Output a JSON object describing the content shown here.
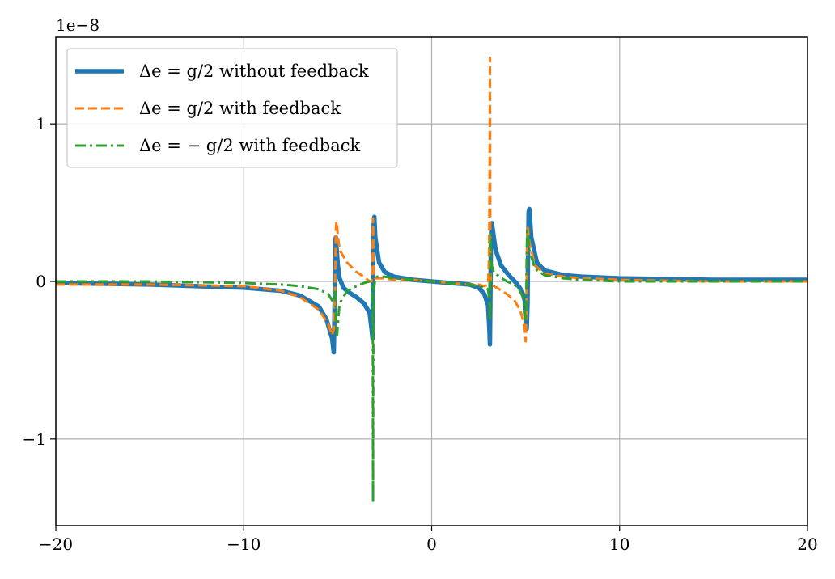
{
  "chart_data": {
    "type": "line",
    "title": "",
    "xlabel": "",
    "ylabel": "",
    "offset_text": "1e−8",
    "xlim": [
      -20,
      20
    ],
    "ylim": [
      -1.55,
      1.55
    ],
    "grid": true,
    "legend_position": "top-left",
    "x_ticks": [
      -20,
      -10,
      0,
      10,
      20
    ],
    "x_tick_labels": [
      "−20",
      "−10",
      "0",
      "10",
      "20"
    ],
    "y_ticks": [
      -1,
      0,
      1
    ],
    "y_tick_labels": [
      "−1",
      "0",
      "1"
    ],
    "series": [
      {
        "name": "Δe = g/2 without feedback",
        "color": "#1f77b4",
        "style": "solid",
        "x": [
          -20,
          -15,
          -10,
          -8,
          -7,
          -6,
          -5.6,
          -5.3,
          -5.21,
          -5.17,
          -5.14,
          -5.12,
          -5.1,
          -5.05,
          -5,
          -4.9,
          -4.7,
          -4.4,
          -4,
          -3.6,
          -3.3,
          -3.18,
          -3.15,
          -3.13,
          -3.1,
          -3.07,
          -3.05,
          -3,
          -2.8,
          -2.5,
          -2,
          -1,
          0,
          1,
          2,
          2.5,
          2.8,
          3,
          3.07,
          3.1,
          3.13,
          3.15,
          3.18,
          3.2,
          3.25,
          3.4,
          3.7,
          4.1,
          4.5,
          4.8,
          4.95,
          5.03,
          5.06,
          5.1,
          5.13,
          5.16,
          5.2,
          5.3,
          5.6,
          6,
          7,
          8,
          10,
          15,
          20
        ],
        "y": [
          -0.01,
          -0.02,
          -0.04,
          -0.06,
          -0.09,
          -0.16,
          -0.24,
          -0.36,
          -0.45,
          -0.2,
          0.1,
          0.24,
          0.28,
          0.2,
          0.11,
          0.02,
          -0.04,
          -0.07,
          -0.1,
          -0.14,
          -0.2,
          -0.32,
          -0.36,
          -0.05,
          0.3,
          0.4,
          0.41,
          0.28,
          0.12,
          0.06,
          0.03,
          0.01,
          0.0,
          -0.01,
          -0.02,
          -0.04,
          -0.08,
          -0.15,
          -0.3,
          -0.4,
          -0.05,
          0.25,
          0.36,
          0.37,
          0.33,
          0.2,
          0.1,
          0.04,
          -0.01,
          -0.06,
          -0.12,
          -0.2,
          -0.3,
          -0.15,
          0.2,
          0.44,
          0.46,
          0.28,
          0.12,
          0.07,
          0.04,
          0.03,
          0.02,
          0.01,
          0.01
        ]
      },
      {
        "name": "Δe = g/2 with feedback",
        "color": "#ff7f0e",
        "style": "dashed",
        "x": [
          -20,
          -15,
          -10,
          -8,
          -7,
          -6,
          -5.5,
          -5.3,
          -5.2,
          -5.15,
          -5.12,
          -5.1,
          -5.07,
          -5.03,
          -5,
          -4.9,
          -4.5,
          -4,
          -3.6,
          -3.3,
          -3.2,
          -3.15,
          -3.13,
          -3.12,
          -3.11,
          -3.1,
          -3.08,
          -3.05,
          -3.02,
          -3,
          -2.9,
          -2.5,
          -2,
          -1,
          0,
          1,
          2,
          2.5,
          2.8,
          3,
          3.05,
          3.08,
          3.1,
          3.11,
          3.12,
          3.13,
          3.15,
          3.2,
          3.3,
          3.6,
          4,
          4.4,
          4.7,
          4.85,
          4.95,
          5,
          5.03,
          5.05,
          5.08,
          5.12,
          5.2,
          5.5,
          6,
          7,
          8,
          10,
          15,
          20
        ],
        "y": [
          -0.02,
          -0.02,
          -0.03,
          -0.06,
          -0.1,
          -0.18,
          -0.27,
          -0.34,
          -0.3,
          -0.1,
          0.15,
          0.32,
          0.38,
          0.35,
          0.3,
          0.2,
          0.12,
          0.06,
          0.03,
          0.0,
          0.0,
          0.05,
          0.25,
          0.4,
          0.35,
          0.15,
          0.06,
          0.03,
          0.02,
          0.02,
          0.02,
          0.02,
          0.01,
          0.01,
          0.0,
          -0.01,
          -0.02,
          -0.02,
          -0.03,
          -0.02,
          0.15,
          0.6,
          1.42,
          0.8,
          0.3,
          0.1,
          0.0,
          -0.01,
          -0.03,
          -0.05,
          -0.08,
          -0.12,
          -0.18,
          -0.24,
          -0.3,
          -0.38,
          -0.28,
          -0.1,
          0.25,
          0.34,
          0.25,
          0.1,
          0.05,
          0.03,
          0.02,
          0.01,
          0.0,
          0.0
        ]
      },
      {
        "name": "Δe = − g/2 with feedback",
        "color": "#2ca02c",
        "style": "dashdot",
        "x": [
          -20,
          -15,
          -10,
          -8,
          -7,
          -6,
          -5.5,
          -5.3,
          -5.2,
          -5.15,
          -5.12,
          -5.1,
          -5.07,
          -5.03,
          -5,
          -4.9,
          -4.5,
          -4,
          -3.6,
          -3.3,
          -3.2,
          -3.15,
          -3.13,
          -3.12,
          -3.11,
          -3.1,
          -3.08,
          -3.05,
          -3.02,
          -3,
          -2.9,
          -2.5,
          -2,
          -1,
          0,
          1,
          2,
          2.5,
          2.8,
          3,
          3.05,
          3.08,
          3.1,
          3.11,
          3.12,
          3.13,
          3.15,
          3.2,
          3.3,
          3.6,
          4,
          4.4,
          4.7,
          4.85,
          4.95,
          5,
          5.03,
          5.05,
          5.08,
          5.12,
          5.2,
          5.5,
          6,
          7,
          8,
          10,
          15,
          20
        ],
        "y": [
          0.0,
          0.0,
          -0.01,
          -0.02,
          -0.03,
          -0.05,
          -0.08,
          -0.12,
          -0.1,
          -0.05,
          -0.1,
          -0.25,
          -0.32,
          -0.34,
          -0.28,
          -0.14,
          -0.06,
          -0.03,
          -0.01,
          0.0,
          -0.02,
          -0.1,
          -0.4,
          -1.4,
          -0.7,
          -0.25,
          -0.08,
          -0.03,
          0.0,
          0.02,
          0.03,
          0.03,
          0.02,
          0.01,
          0.0,
          -0.01,
          -0.02,
          -0.03,
          -0.04,
          -0.05,
          -0.1,
          -0.2,
          -0.25,
          -0.1,
          0.1,
          0.3,
          0.2,
          0.1,
          0.06,
          0.03,
          0.0,
          -0.02,
          -0.06,
          -0.1,
          -0.18,
          -0.25,
          -0.2,
          0.1,
          0.32,
          0.3,
          0.2,
          0.08,
          0.04,
          0.02,
          0.01,
          0.0,
          0.0,
          0.0
        ]
      }
    ]
  }
}
